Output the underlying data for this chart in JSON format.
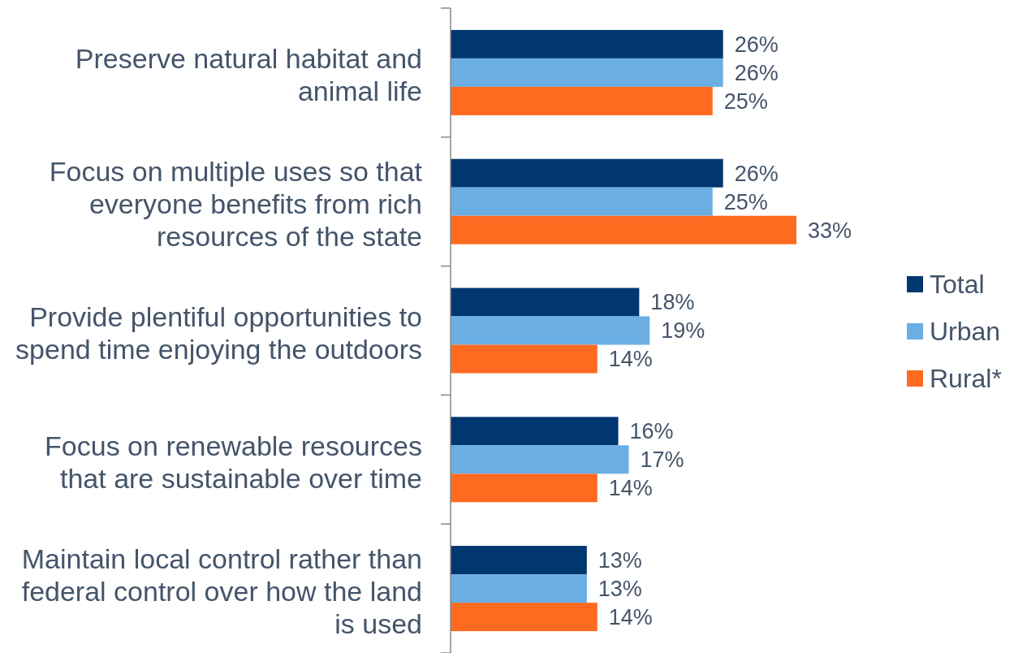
{
  "chart_data": {
    "type": "bar",
    "orientation": "horizontal",
    "legend": "right",
    "categories": [
      "Preserve natural habitat and animal life",
      "Focus on multiple uses so that everyone benefits from rich resources of the state",
      "Provide plentiful opportunities to spend time enjoying the outdoors",
      "Focus on renewable resources that are sustainable over time",
      "Maintain local control rather than federal control over how the land is used"
    ],
    "series": [
      {
        "name": "Total",
        "color": "#003770",
        "values": [
          26,
          26,
          18,
          16,
          13
        ],
        "value_labels": [
          "26%",
          "26%",
          "18%",
          "16%",
          "13%"
        ]
      },
      {
        "name": "Urban",
        "color": "#6aaee4",
        "values": [
          26,
          25,
          19,
          17,
          13
        ],
        "value_labels": [
          "26%",
          "25%",
          "19%",
          "17%",
          "13%"
        ]
      },
      {
        "name": "Rural*",
        "color": "#ff6a21",
        "values": [
          25,
          33,
          14,
          14,
          14
        ],
        "value_labels": [
          "25%",
          "33%",
          "14%",
          "14%",
          "14%"
        ]
      }
    ]
  }
}
